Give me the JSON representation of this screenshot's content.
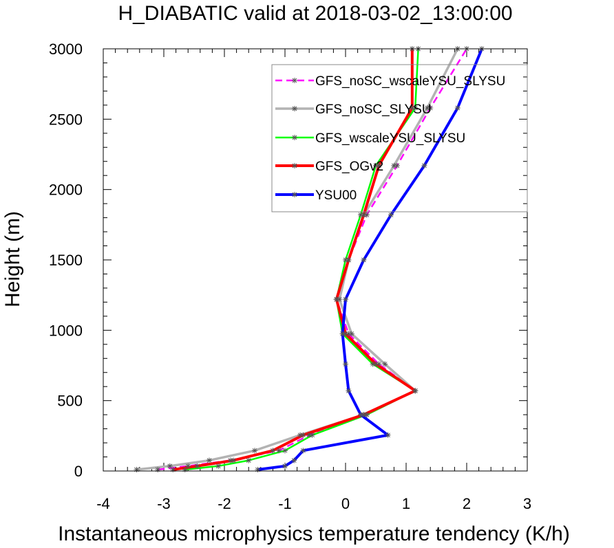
{
  "chart_data": {
    "type": "line",
    "title": "H_DIABATIC valid at 2018-03-02_13:00:00",
    "xlabel": "Instantaneous microphysics temperature tendency (K/h)",
    "ylabel": "Height (m)",
    "xlim": [
      -4,
      3
    ],
    "ylim": [
      0,
      3000
    ],
    "x_ticks": [
      -4,
      -3,
      -2,
      -1,
      0,
      1,
      2,
      3
    ],
    "y_ticks": [
      0,
      500,
      1000,
      1500,
      2000,
      2500,
      3000
    ],
    "x_tick_labels": [
      "-4",
      "-3",
      "-2",
      "-1",
      "0",
      "1",
      "2",
      "3"
    ],
    "y_tick_labels": [
      "0",
      "500",
      "1000",
      "1500",
      "2000",
      "2500",
      "3000"
    ],
    "grid": false,
    "legend_position": "top-right",
    "heights": [
      10,
      35,
      75,
      145,
      255,
      400,
      570,
      760,
      975,
      1220,
      1500,
      1820,
      2170,
      2580,
      3000
    ],
    "series": [
      {
        "name": "GFS_noSC_wscaleYSU_SLYSU",
        "color": "#ff00ff",
        "dash": true,
        "stroke_width": 2.5,
        "values": [
          -3.1,
          -2.6,
          -1.9,
          -1.1,
          -0.6,
          0.35,
          1.15,
          0.55,
          0.05,
          -0.15,
          0.05,
          0.35,
          0.85,
          1.4,
          2.0
        ]
      },
      {
        "name": "GFS_noSC_SLYSU",
        "color": "#b3b3b3",
        "dash": false,
        "stroke_width": 3.5,
        "values": [
          -3.45,
          -2.9,
          -2.25,
          -1.5,
          -0.75,
          0.3,
          1.15,
          0.65,
          0.1,
          -0.1,
          0.05,
          0.3,
          0.8,
          1.35,
          1.85
        ]
      },
      {
        "name": "GFS_wscaleYSU_SLYSU",
        "color": "#00ff00",
        "dash": false,
        "stroke_width": 2.5,
        "values": [
          -2.65,
          -2.1,
          -1.6,
          -1.0,
          -0.55,
          0.35,
          1.15,
          0.45,
          -0.05,
          -0.15,
          0.0,
          0.25,
          0.5,
          1.15,
          1.2
        ]
      },
      {
        "name": "GFS_OGv2",
        "color": "#ff0000",
        "dash": false,
        "stroke_width": 4,
        "values": [
          -2.85,
          -2.45,
          -1.85,
          -1.2,
          -0.7,
          0.3,
          1.15,
          0.5,
          0.0,
          -0.15,
          0.05,
          0.3,
          0.55,
          1.1,
          1.1
        ]
      },
      {
        "name": "YSU00",
        "color": "#0000ff",
        "dash": false,
        "stroke_width": 4,
        "values": [
          -1.45,
          -1.0,
          -0.85,
          -0.7,
          0.7,
          0.25,
          0.05,
          0.0,
          -0.05,
          0.0,
          0.3,
          0.75,
          1.3,
          1.85,
          2.25
        ]
      }
    ]
  }
}
